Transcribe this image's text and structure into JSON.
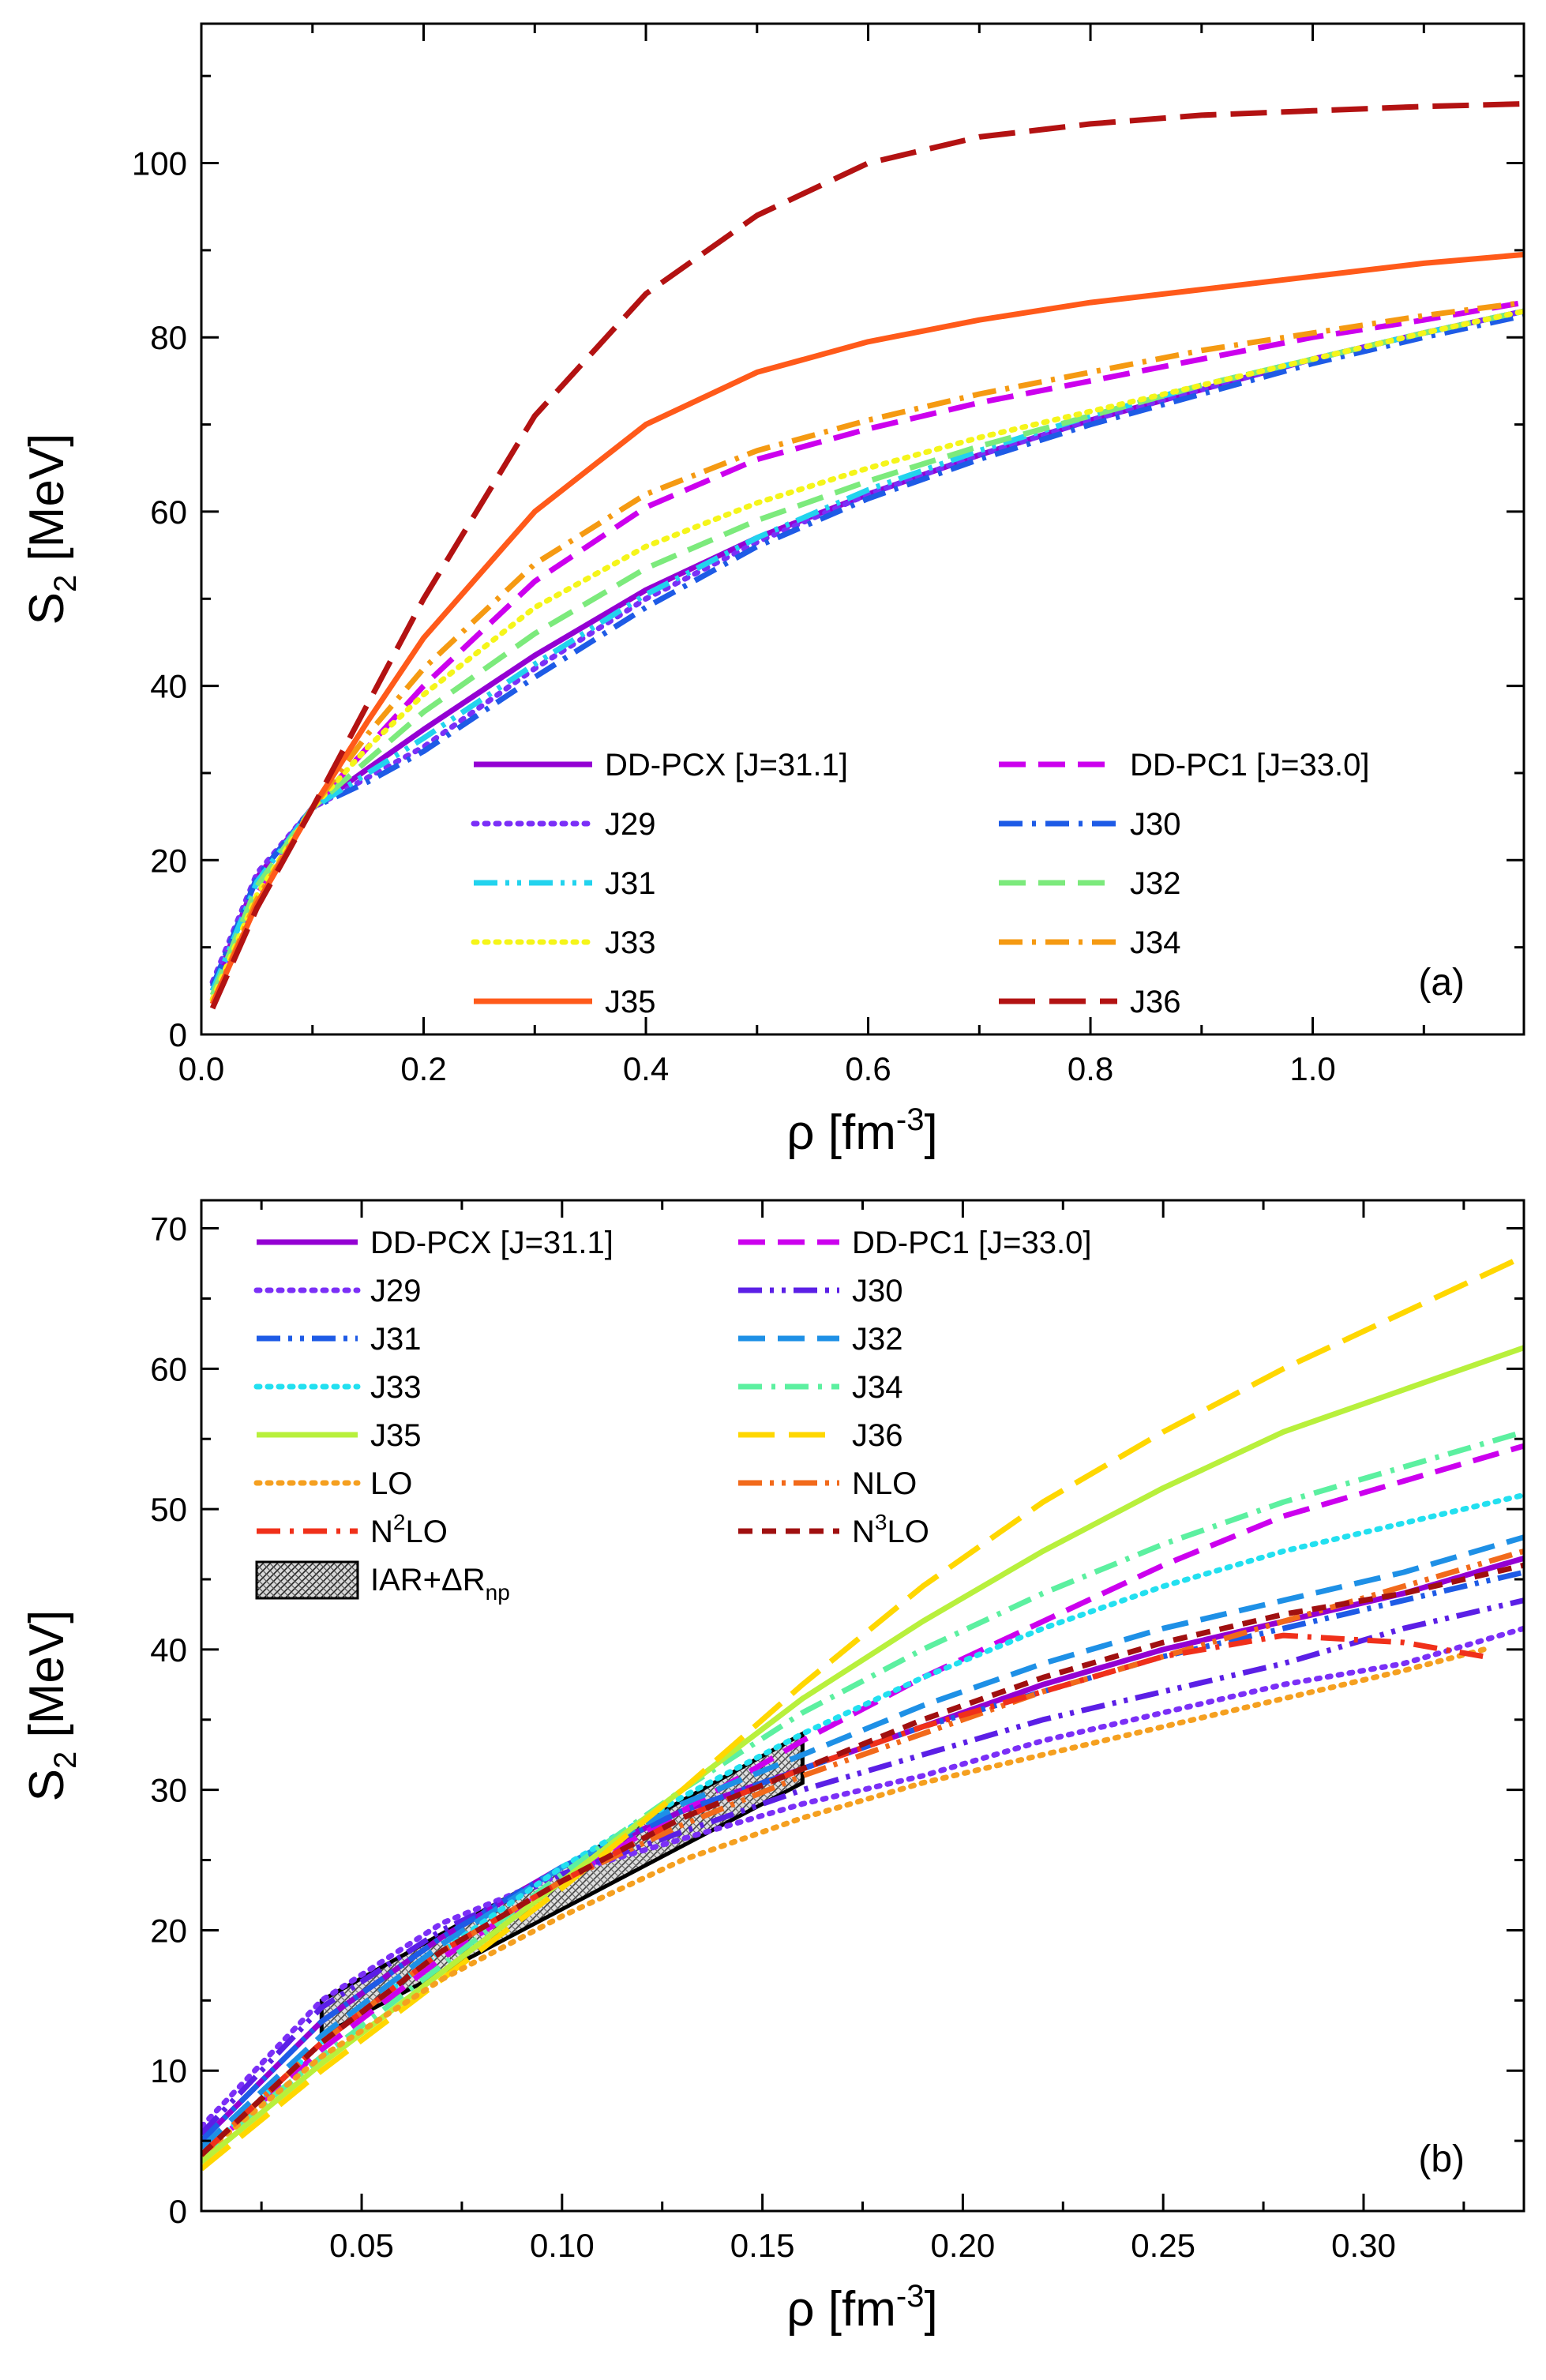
{
  "figure": {
    "description_free": true
  },
  "chart_data": [
    {
      "type": "line",
      "panel_label": "(a)",
      "xlabel": {
        "main": "ρ [fm",
        "sup": "-3",
        "end": "]"
      },
      "ylabel": {
        "main": "S",
        "sub": "2",
        "end": " [MeV]"
      },
      "xlim": [
        0.0,
        1.19
      ],
      "ylim": [
        0,
        116
      ],
      "xticks": [
        0.0,
        0.2,
        0.4,
        0.6,
        0.8,
        1.0
      ],
      "xtick_labels": [
        "0.0",
        "0.2",
        "0.4",
        "0.6",
        "0.8",
        "1.0"
      ],
      "yticks": [
        0,
        20,
        40,
        60,
        80,
        100
      ],
      "ytick_labels": [
        "0",
        "20",
        "40",
        "60",
        "80",
        "100"
      ],
      "legend_position": "lower-right",
      "series": [
        {
          "name": "DD-PCX [J=31.1]",
          "color": "#9400D3",
          "style": "solid",
          "x": [
            0.01,
            0.05,
            0.1,
            0.15,
            0.2,
            0.3,
            0.4,
            0.5,
            0.6,
            0.7,
            0.8,
            0.9,
            1.0,
            1.1,
            1.19
          ],
          "y": [
            5,
            18,
            26,
            30.5,
            35,
            43.5,
            51,
            57,
            62,
            66.5,
            70.5,
            74,
            77.5,
            80.5,
            83
          ]
        },
        {
          "name": "DD-PC1 [J=33.0]",
          "color": "#CC00EE",
          "style": "dash",
          "x": [
            0.01,
            0.05,
            0.1,
            0.15,
            0.2,
            0.3,
            0.4,
            0.5,
            0.6,
            0.7,
            0.8,
            0.9,
            1.0,
            1.1,
            1.19
          ],
          "y": [
            4,
            16,
            26,
            33,
            40,
            52,
            60.5,
            66,
            69.5,
            72.5,
            75,
            77.5,
            80,
            82,
            84
          ]
        },
        {
          "name": "J29",
          "color": "#7B2FF7",
          "style": "dot",
          "x": [
            0.01,
            0.05,
            0.1,
            0.15,
            0.2,
            0.3,
            0.4,
            0.5,
            0.6,
            0.7,
            0.8,
            0.9,
            1.0,
            1.1,
            1.19
          ],
          "y": [
            6,
            18.5,
            26,
            29.5,
            33,
            42,
            50,
            56.5,
            62,
            66.5,
            70.5,
            74,
            77.5,
            80.5,
            83
          ]
        },
        {
          "name": "J30",
          "color": "#1E5BE6",
          "style": "dashdot",
          "x": [
            0.01,
            0.05,
            0.1,
            0.15,
            0.2,
            0.3,
            0.4,
            0.5,
            0.6,
            0.7,
            0.8,
            0.9,
            1.0,
            1.1,
            1.19
          ],
          "y": [
            5.5,
            18,
            26,
            29,
            32.5,
            41,
            49,
            56,
            61.5,
            66,
            70,
            73.5,
            77,
            80,
            82.5
          ]
        },
        {
          "name": "J31",
          "color": "#22D3EE",
          "style": "dashdotdot",
          "x": [
            0.01,
            0.05,
            0.1,
            0.15,
            0.2,
            0.3,
            0.4,
            0.5,
            0.6,
            0.7,
            0.8,
            0.9,
            1.0,
            1.1,
            1.19
          ],
          "y": [
            5,
            17.5,
            26,
            30,
            34,
            42.5,
            50.5,
            57,
            62.5,
            67,
            71,
            74.5,
            77.5,
            80.5,
            83
          ]
        },
        {
          "name": "J32",
          "color": "#7CEA7C",
          "style": "dash",
          "x": [
            0.01,
            0.05,
            0.1,
            0.15,
            0.2,
            0.3,
            0.4,
            0.5,
            0.6,
            0.7,
            0.8,
            0.9,
            1.0,
            1.1,
            1.19
          ],
          "y": [
            4.5,
            17,
            26,
            31.5,
            37,
            46,
            53.5,
            59,
            63.5,
            67.5,
            71,
            74.5,
            77.5,
            80.5,
            83
          ]
        },
        {
          "name": "J33",
          "color": "#F5F51A",
          "style": "dot",
          "x": [
            0.01,
            0.05,
            0.1,
            0.15,
            0.2,
            0.3,
            0.4,
            0.5,
            0.6,
            0.7,
            0.8,
            0.9,
            1.0,
            1.1,
            1.19
          ],
          "y": [
            4,
            16,
            26,
            33,
            39,
            49,
            56,
            61,
            65,
            68.5,
            71.5,
            74.5,
            77.5,
            80.5,
            83
          ]
        },
        {
          "name": "J34",
          "color": "#F59A12",
          "style": "dashdot",
          "x": [
            0.01,
            0.05,
            0.1,
            0.15,
            0.2,
            0.3,
            0.4,
            0.5,
            0.6,
            0.7,
            0.8,
            0.9,
            1.0,
            1.1,
            1.19
          ],
          "y": [
            3.5,
            15.5,
            26,
            34.5,
            42,
            54,
            62,
            67,
            70.5,
            73.5,
            76,
            78.5,
            80.5,
            82.5,
            84
          ]
        },
        {
          "name": "J35",
          "color": "#FF5A1A",
          "style": "solid",
          "x": [
            0.01,
            0.05,
            0.1,
            0.15,
            0.2,
            0.3,
            0.4,
            0.5,
            0.6,
            0.7,
            0.8,
            0.9,
            1.0,
            1.1,
            1.19
          ],
          "y": [
            3.5,
            15,
            26,
            36,
            45.5,
            60,
            70,
            76,
            79.5,
            82,
            84,
            85.5,
            87,
            88.5,
            89.5
          ]
        },
        {
          "name": "J36",
          "color": "#B31212",
          "style": "longdash",
          "x": [
            0.01,
            0.05,
            0.1,
            0.15,
            0.2,
            0.3,
            0.4,
            0.5,
            0.6,
            0.7,
            0.8,
            0.9,
            1.0,
            1.1,
            1.19
          ],
          "y": [
            3,
            14.5,
            26,
            38,
            50,
            71,
            85,
            94,
            100,
            103,
            104.5,
            105.5,
            106,
            106.5,
            106.8
          ]
        }
      ]
    },
    {
      "type": "line",
      "panel_label": "(b)",
      "xlabel": {
        "main": "ρ [fm",
        "sup": "-3",
        "end": "]"
      },
      "ylabel": {
        "main": "S",
        "sub": "2",
        "end": " [MeV]"
      },
      "xlim": [
        0.01,
        0.34
      ],
      "ylim": [
        0,
        72
      ],
      "xticks": [
        0.05,
        0.1,
        0.15,
        0.2,
        0.25,
        0.3
      ],
      "xtick_labels": [
        "0.05",
        "0.10",
        "0.15",
        "0.20",
        "0.25",
        "0.30"
      ],
      "yticks": [
        0,
        10,
        20,
        30,
        40,
        50,
        60,
        70
      ],
      "ytick_labels": [
        "0",
        "10",
        "20",
        "30",
        "40",
        "50",
        "60",
        "70"
      ],
      "legend_position": "top-left",
      "series": [
        {
          "name": "DD-PCX [J=31.1]",
          "label_parts": [
            "DD-PCX [J=31.1]"
          ],
          "color": "#9400D3",
          "style": "solid",
          "x": [
            0.01,
            0.04,
            0.07,
            0.1,
            0.13,
            0.16,
            0.19,
            0.22,
            0.25,
            0.28,
            0.31,
            0.34
          ],
          "y": [
            5,
            13.5,
            19.5,
            24.5,
            28.5,
            31.5,
            34.5,
            37.5,
            40,
            42,
            44,
            46.5
          ]
        },
        {
          "name": "DD-PC1 [J=33.0]",
          "label_parts": [
            "DD-PC1 [J=33.0]"
          ],
          "color": "#CC00EE",
          "style": "dash",
          "x": [
            0.01,
            0.04,
            0.07,
            0.1,
            0.13,
            0.16,
            0.19,
            0.22,
            0.25,
            0.28,
            0.31,
            0.34
          ],
          "y": [
            4,
            11.5,
            18,
            23.5,
            28.5,
            33.5,
            38,
            42,
            46,
            49.5,
            52,
            54.5
          ]
        },
        {
          "name": "J29",
          "label_parts": [
            "J29"
          ],
          "color": "#7B2FF7",
          "style": "dot",
          "x": [
            0.01,
            0.04,
            0.07,
            0.1,
            0.13,
            0.16,
            0.19,
            0.22,
            0.25,
            0.28,
            0.31,
            0.34
          ],
          "y": [
            6,
            15,
            20.5,
            24,
            26.5,
            29,
            31,
            33.5,
            35.5,
            37.5,
            39,
            41.5
          ]
        },
        {
          "name": "J30",
          "label_parts": [
            "J30"
          ],
          "color": "#5B1FE6",
          "style": "dashdotdot",
          "x": [
            0.01,
            0.04,
            0.07,
            0.1,
            0.13,
            0.16,
            0.19,
            0.22,
            0.25,
            0.28,
            0.31,
            0.34
          ],
          "y": [
            5.5,
            14.5,
            20,
            24,
            27,
            30,
            32.5,
            35,
            37,
            39,
            41.5,
            43.5
          ]
        },
        {
          "name": "J31",
          "label_parts": [
            "J31"
          ],
          "color": "#1E5BE6",
          "style": "dashdotdot",
          "x": [
            0.01,
            0.04,
            0.07,
            0.1,
            0.13,
            0.16,
            0.19,
            0.22,
            0.25,
            0.28,
            0.31,
            0.34
          ],
          "y": [
            5,
            13.5,
            19.5,
            24.5,
            28.5,
            31.5,
            34.5,
            37,
            39.5,
            41.5,
            43.5,
            45.5
          ]
        },
        {
          "name": "J32",
          "label_parts": [
            "J32"
          ],
          "color": "#1E90E6",
          "style": "dash",
          "x": [
            0.01,
            0.04,
            0.07,
            0.1,
            0.13,
            0.16,
            0.19,
            0.22,
            0.25,
            0.28,
            0.31,
            0.34
          ],
          "y": [
            4.5,
            12.5,
            19,
            24.5,
            29,
            32.5,
            36,
            39,
            41.5,
            43.5,
            45.5,
            48
          ]
        },
        {
          "name": "J33",
          "label_parts": [
            "J33"
          ],
          "color": "#22E0F0",
          "style": "dot",
          "x": [
            0.01,
            0.04,
            0.07,
            0.1,
            0.13,
            0.16,
            0.19,
            0.22,
            0.25,
            0.28,
            0.31,
            0.34
          ],
          "y": [
            4,
            12,
            18.5,
            24.5,
            29.5,
            34,
            38,
            41.5,
            44.5,
            47,
            49,
            51
          ]
        },
        {
          "name": "J34",
          "label_parts": [
            "J34"
          ],
          "color": "#5CF0A0",
          "style": "dashdot",
          "x": [
            0.01,
            0.04,
            0.07,
            0.1,
            0.13,
            0.16,
            0.19,
            0.22,
            0.25,
            0.28,
            0.31,
            0.34
          ],
          "y": [
            4,
            11,
            17.5,
            24,
            30,
            35.5,
            40,
            44,
            47.5,
            50.5,
            53,
            55.5
          ]
        },
        {
          "name": "J35",
          "label_parts": [
            "J35"
          ],
          "color": "#B8F03C",
          "style": "solid",
          "x": [
            0.01,
            0.04,
            0.07,
            0.1,
            0.13,
            0.16,
            0.19,
            0.22,
            0.25,
            0.28,
            0.31,
            0.34
          ],
          "y": [
            3.5,
            10.5,
            17,
            23.5,
            30,
            36.5,
            42,
            47,
            51.5,
            55.5,
            58.5,
            61.5
          ]
        },
        {
          "name": "J36",
          "label_parts": [
            "J36"
          ],
          "color": "#FFD700",
          "style": "longdash",
          "x": [
            0.01,
            0.04,
            0.07,
            0.1,
            0.13,
            0.16,
            0.19,
            0.22,
            0.25,
            0.28,
            0.31,
            0.34
          ],
          "y": [
            3,
            10,
            16.5,
            23,
            30,
            37.5,
            44.5,
            50.5,
            55.5,
            60,
            64,
            68
          ]
        },
        {
          "name": "LO",
          "label_parts": [
            "LO"
          ],
          "color": "#F5A020",
          "style": "dot",
          "x": [
            0.01,
            0.04,
            0.07,
            0.1,
            0.13,
            0.16,
            0.19,
            0.22,
            0.25,
            0.28,
            0.31,
            0.33
          ],
          "y": [
            4,
            11,
            16.5,
            21,
            25,
            28,
            30.5,
            32.5,
            34.5,
            36.5,
            38.5,
            40
          ]
        },
        {
          "name": "NLO",
          "label_parts": [
            "NLO"
          ],
          "color": "#F26A1B",
          "style": "dashdotdot",
          "x": [
            0.01,
            0.04,
            0.07,
            0.1,
            0.13,
            0.16,
            0.19,
            0.22,
            0.25,
            0.28,
            0.31,
            0.34
          ],
          "y": [
            4,
            12,
            18.5,
            23.5,
            27.5,
            31,
            34,
            37,
            39.5,
            42,
            44.5,
            47
          ]
        },
        {
          "name": "N²LO",
          "label_parts": [
            "N",
            "2",
            "LO"
          ],
          "color": "#F0301A",
          "style": "dashdot",
          "x": [
            0.01,
            0.04,
            0.07,
            0.1,
            0.13,
            0.16,
            0.19,
            0.22,
            0.25,
            0.28,
            0.31,
            0.33
          ],
          "y": [
            4,
            12,
            18.5,
            23.5,
            28,
            31.5,
            34.5,
            37,
            39.5,
            41,
            40.5,
            39.5
          ]
        },
        {
          "name": "N³LO",
          "label_parts": [
            "N",
            "3",
            "LO"
          ],
          "color": "#A01010",
          "style": "shortdash",
          "x": [
            0.01,
            0.04,
            0.07,
            0.1,
            0.13,
            0.16,
            0.19,
            0.22,
            0.25,
            0.28,
            0.31,
            0.34
          ],
          "y": [
            4,
            12,
            18.5,
            23.5,
            28,
            31.5,
            35,
            38,
            40.5,
            42.5,
            44,
            46
          ]
        }
      ],
      "constraint_band": {
        "name": "IAR+ΔR_np",
        "label_parts": [
          "IAR+ΔR",
          "np"
        ],
        "polygon": [
          [
            0.04,
            12.5
          ],
          [
            0.04,
            15
          ],
          [
            0.16,
            34
          ],
          [
            0.16,
            30.5
          ]
        ],
        "fill": "#8A8A8A",
        "stroke": "#000000"
      }
    }
  ]
}
